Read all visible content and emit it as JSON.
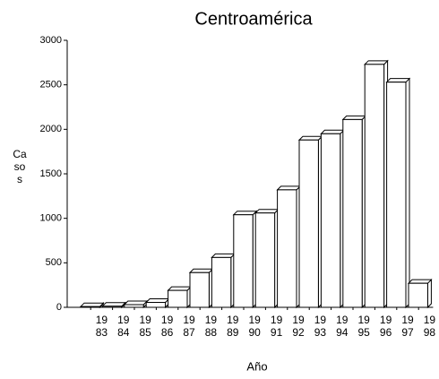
{
  "chart_data": {
    "type": "bar3d",
    "title": "Centroamérica",
    "x_label": "Año",
    "y_label": "Casos",
    "categories": [
      "1983",
      "1984",
      "1985",
      "1986",
      "1987",
      "1988",
      "1989",
      "1990",
      "1991",
      "1992",
      "1993",
      "1994",
      "1995",
      "1996",
      "1997",
      "1998"
    ],
    "values": [
      8,
      12,
      30,
      55,
      190,
      390,
      560,
      1040,
      1060,
      1320,
      1880,
      1950,
      2110,
      2730,
      2530,
      270
    ],
    "color": "#ffffff",
    "ylim": [
      0,
      3000
    ],
    "yticks": [
      0,
      500,
      1000,
      1500,
      2000,
      2500,
      3000
    ]
  }
}
